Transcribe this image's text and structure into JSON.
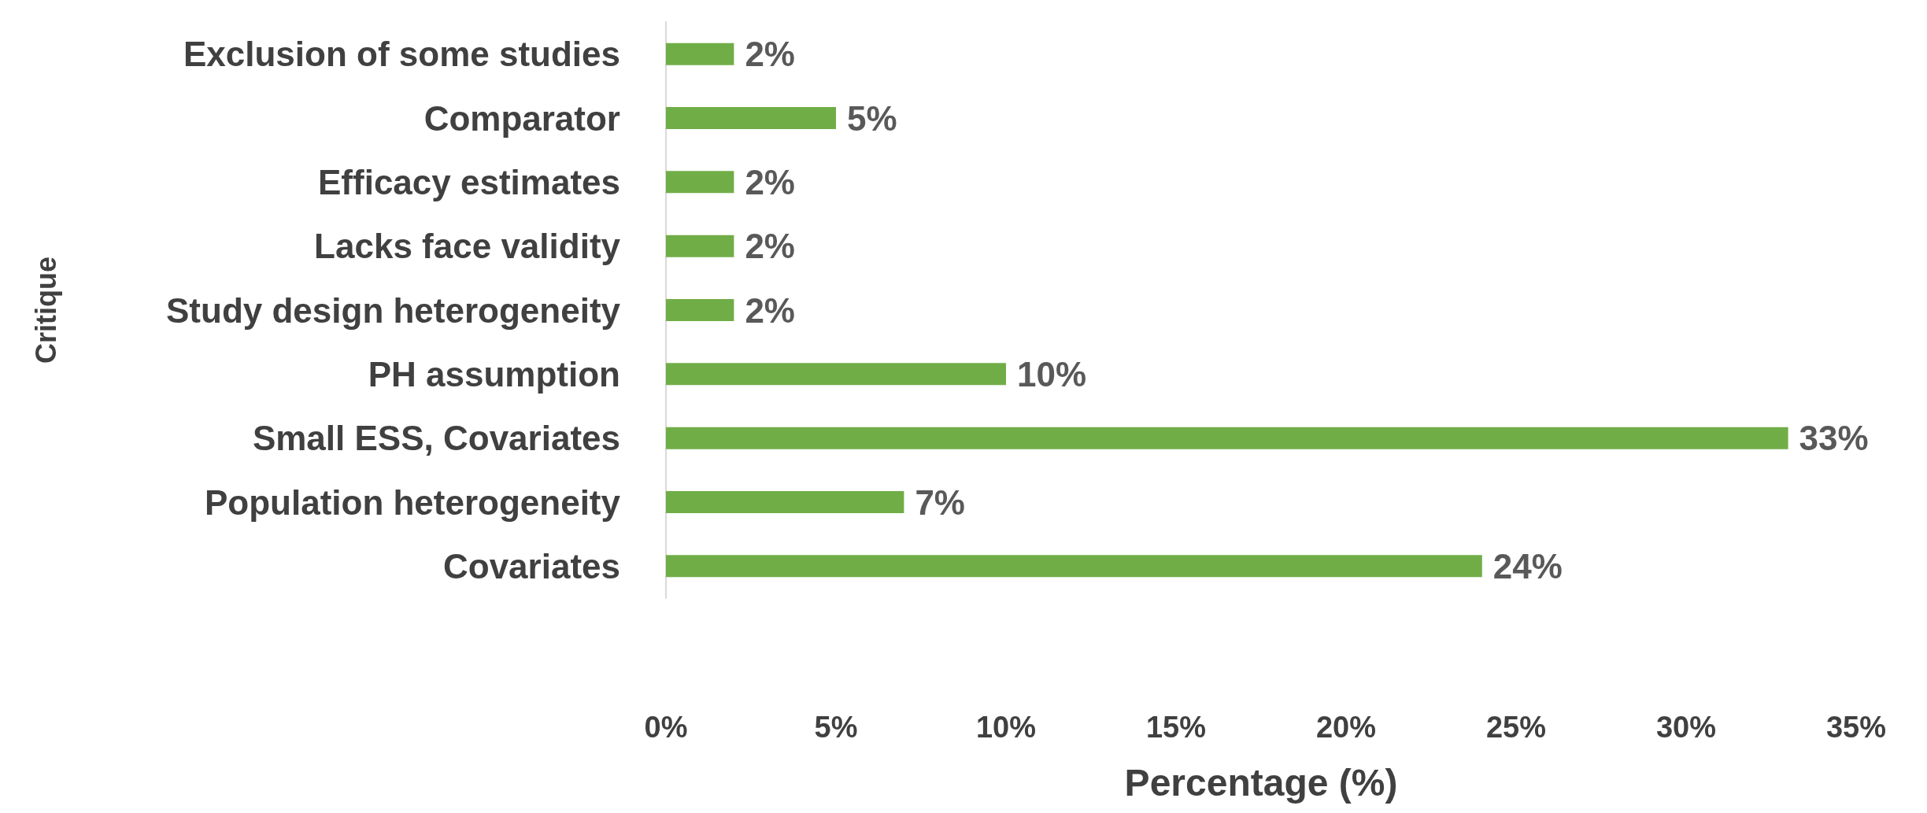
{
  "chart_data": {
    "type": "bar",
    "orientation": "horizontal",
    "xlabel": "Percentage (%)",
    "ylabel": "Critique",
    "categories": [
      "Exclusion of some studies",
      "Comparator",
      "Efficacy estimates",
      "Lacks face validity",
      "Study design heterogeneity",
      "PH assumption",
      "Small ESS, Covariates",
      "Population heterogeneity",
      "Covariates"
    ],
    "values": [
      2,
      5,
      2,
      2,
      2,
      10,
      33,
      7,
      24
    ],
    "value_labels": [
      "2%",
      "5%",
      "2%",
      "2%",
      "2%",
      "10%",
      "33%",
      "7%",
      "24%"
    ],
    "color": "#70ad47",
    "xlim": [
      0,
      35
    ],
    "xticks": [
      {
        "value": 0,
        "label": "0%"
      },
      {
        "value": 5,
        "label": "5%"
      },
      {
        "value": 10,
        "label": "10%"
      },
      {
        "value": 15,
        "label": "15%"
      },
      {
        "value": 20,
        "label": "20%"
      },
      {
        "value": 25,
        "label": "25%"
      },
      {
        "value": 30,
        "label": "30%"
      },
      {
        "value": 35,
        "label": "35%"
      }
    ],
    "grid": false
  }
}
